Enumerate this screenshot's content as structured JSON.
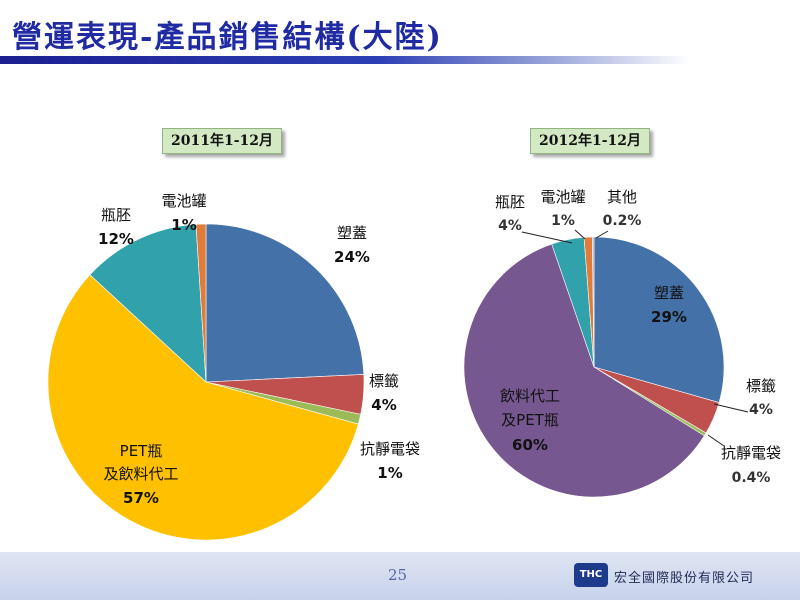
{
  "page": {
    "title": "營運表現-產品銷售結構(大陸)",
    "page_number": "25",
    "company": "宏全國際股份有限公司",
    "logo_text": "THC"
  },
  "chart_data": [
    {
      "type": "pie",
      "title": "2011年1-12月",
      "slices": [
        {
          "label": "塑蓋",
          "value": 24,
          "value_label": "24%",
          "color": "#4472a8"
        },
        {
          "label": "標籤",
          "value": 4,
          "value_label": "4%",
          "color": "#c0504d"
        },
        {
          "label": "抗靜電袋",
          "value": 1,
          "value_label": "1%",
          "color": "#9bbb59"
        },
        {
          "label": "PET瓶及飲料代工",
          "value": 57,
          "value_label": "57%",
          "color": "#ffc000"
        },
        {
          "label": "瓶胚",
          "value": 12,
          "value_label": "12%",
          "color": "#31a2ac"
        },
        {
          "label": "電池罐",
          "value": 1,
          "value_label": "1%",
          "color": "#e07b39"
        }
      ]
    },
    {
      "type": "pie",
      "title": "2012年1-12月",
      "slices": [
        {
          "label": "塑蓋",
          "value": 29,
          "value_label": "29%",
          "color": "#4472a8"
        },
        {
          "label": "標籤",
          "value": 4,
          "value_label": "4%",
          "color": "#c0504d"
        },
        {
          "label": "抗靜電袋",
          "value": 0.4,
          "value_label": "0.4%",
          "color": "#9bbb59"
        },
        {
          "label": "飲料代工及PET瓶",
          "value": 60,
          "value_label": "60%",
          "color": "#76578f"
        },
        {
          "label": "瓶胚",
          "value": 4,
          "value_label": "4%",
          "color": "#31a2ac"
        },
        {
          "label": "電池罐",
          "value": 1,
          "value_label": "1%",
          "color": "#e07b39"
        },
        {
          "label": "其他",
          "value": 0.2,
          "value_label": "0.2%",
          "color": "#99a7d6"
        }
      ]
    }
  ]
}
